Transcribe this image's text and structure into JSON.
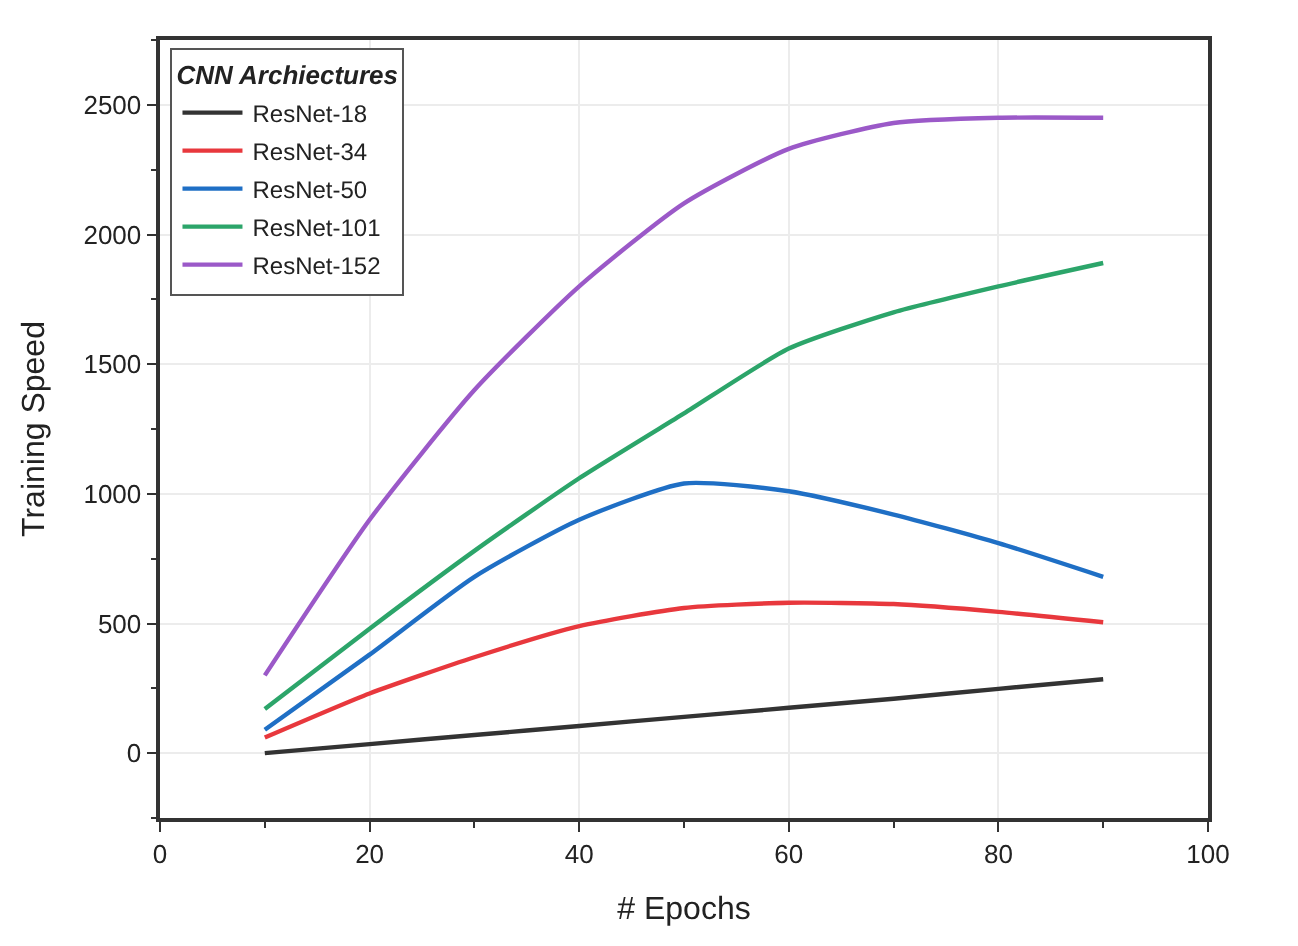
{
  "chart_data": {
    "type": "line",
    "xlabel": "# Epochs",
    "ylabel": "Training Speed",
    "legend_title": "CNN Archiectures",
    "legend": "top left",
    "grid": true,
    "marker": "none",
    "line_style": "solid",
    "x": [
      10,
      20,
      30,
      40,
      50,
      60,
      70,
      80,
      90
    ],
    "xlim": [
      0,
      100
    ],
    "xticks": [
      0,
      20,
      40,
      60,
      80,
      100
    ],
    "ylim": [
      -250,
      2750
    ],
    "yticks": [
      0,
      500,
      1000,
      1500,
      2000,
      2500
    ],
    "series": [
      {
        "name": "ResNet-18",
        "color": "#333333",
        "values": [
          0,
          35,
          70,
          105,
          140,
          175,
          210,
          248,
          285
        ]
      },
      {
        "name": "ResNet-34",
        "color": "#e8383d",
        "values": [
          60,
          230,
          370,
          490,
          560,
          580,
          575,
          545,
          505
        ]
      },
      {
        "name": "ResNet-50",
        "color": "#1f6fc5",
        "values": [
          90,
          380,
          680,
          900,
          1040,
          1010,
          920,
          810,
          680
        ]
      },
      {
        "name": "ResNet-101",
        "color": "#2ca56a",
        "values": [
          170,
          480,
          780,
          1060,
          1310,
          1560,
          1700,
          1800,
          1890
        ]
      },
      {
        "name": "ResNet-152",
        "color": "#9b59c8",
        "values": [
          300,
          900,
          1400,
          1800,
          2120,
          2330,
          2430,
          2450,
          2450
        ]
      }
    ]
  }
}
